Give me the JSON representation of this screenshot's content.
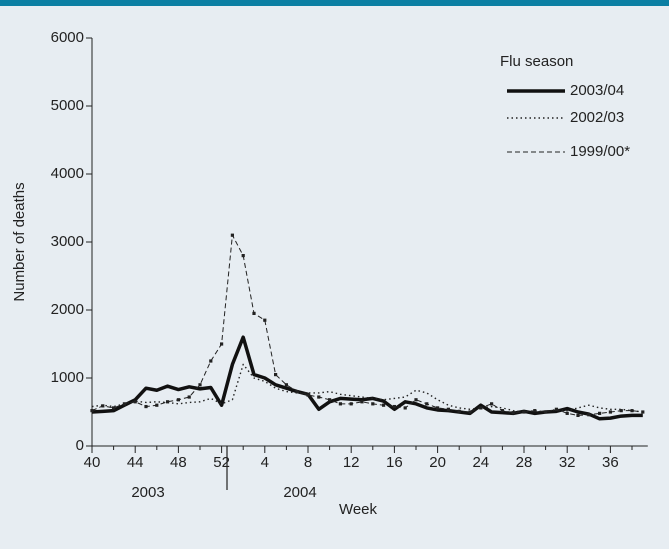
{
  "chart_data": {
    "type": "line",
    "ylabel": "Number of deaths",
    "xlabel": "Week",
    "legend_title": "Flu season",
    "year_labels": [
      "2003",
      "2004"
    ],
    "categories": [
      "40",
      null,
      null,
      null,
      "44",
      null,
      null,
      null,
      "48",
      null,
      null,
      null,
      "52",
      null,
      null,
      null,
      "4",
      null,
      null,
      null,
      "8",
      null,
      null,
      null,
      "12",
      null,
      null,
      null,
      "16",
      null,
      null,
      null,
      "20",
      null,
      null,
      null,
      "24",
      null,
      null,
      null,
      "28",
      null,
      null,
      null,
      "32",
      null,
      null,
      null,
      "36",
      null,
      null,
      null
    ],
    "series": [
      {
        "name": "2003/04",
        "color": "#111111",
        "values": [
          500,
          510,
          520,
          600,
          680,
          850,
          820,
          880,
          830,
          870,
          840,
          860,
          600,
          1200,
          1600,
          1050,
          1000,
          900,
          850,
          800,
          760,
          540,
          650,
          700,
          690,
          680,
          700,
          660,
          540,
          650,
          620,
          560,
          530,
          520,
          500,
          480,
          600,
          500,
          490,
          480,
          510,
          480,
          500,
          510,
          550,
          500,
          470,
          400,
          410,
          440,
          450,
          450
        ]
      },
      {
        "name": "2002/03",
        "color": "#222222",
        "values": [
          580,
          600,
          580,
          620,
          660,
          640,
          650,
          640,
          620,
          640,
          650,
          700,
          620,
          680,
          1200,
          1000,
          950,
          850,
          800,
          780,
          780,
          780,
          800,
          760,
          740,
          720,
          700,
          680,
          700,
          720,
          820,
          780,
          680,
          600,
          560,
          540,
          560,
          580,
          560,
          520,
          500,
          520,
          500,
          540,
          520,
          560,
          600,
          560,
          540,
          540,
          520,
          500
        ]
      },
      {
        "name": "1999/00*",
        "color": "#222222",
        "values": [
          520,
          590,
          560,
          620,
          650,
          580,
          600,
          650,
          680,
          720,
          900,
          1250,
          1500,
          3100,
          2800,
          1950,
          1850,
          1050,
          900,
          800,
          750,
          720,
          680,
          620,
          620,
          650,
          620,
          600,
          580,
          560,
          680,
          620,
          560,
          540,
          510,
          500,
          560,
          620,
          520,
          490,
          500,
          520,
          500,
          540,
          480,
          450,
          460,
          480,
          500,
          520,
          520,
          500
        ]
      }
    ],
    "ylim": [
      0,
      6000
    ],
    "yticks": [
      0,
      1000,
      2000,
      3000,
      4000,
      5000,
      6000
    ]
  }
}
